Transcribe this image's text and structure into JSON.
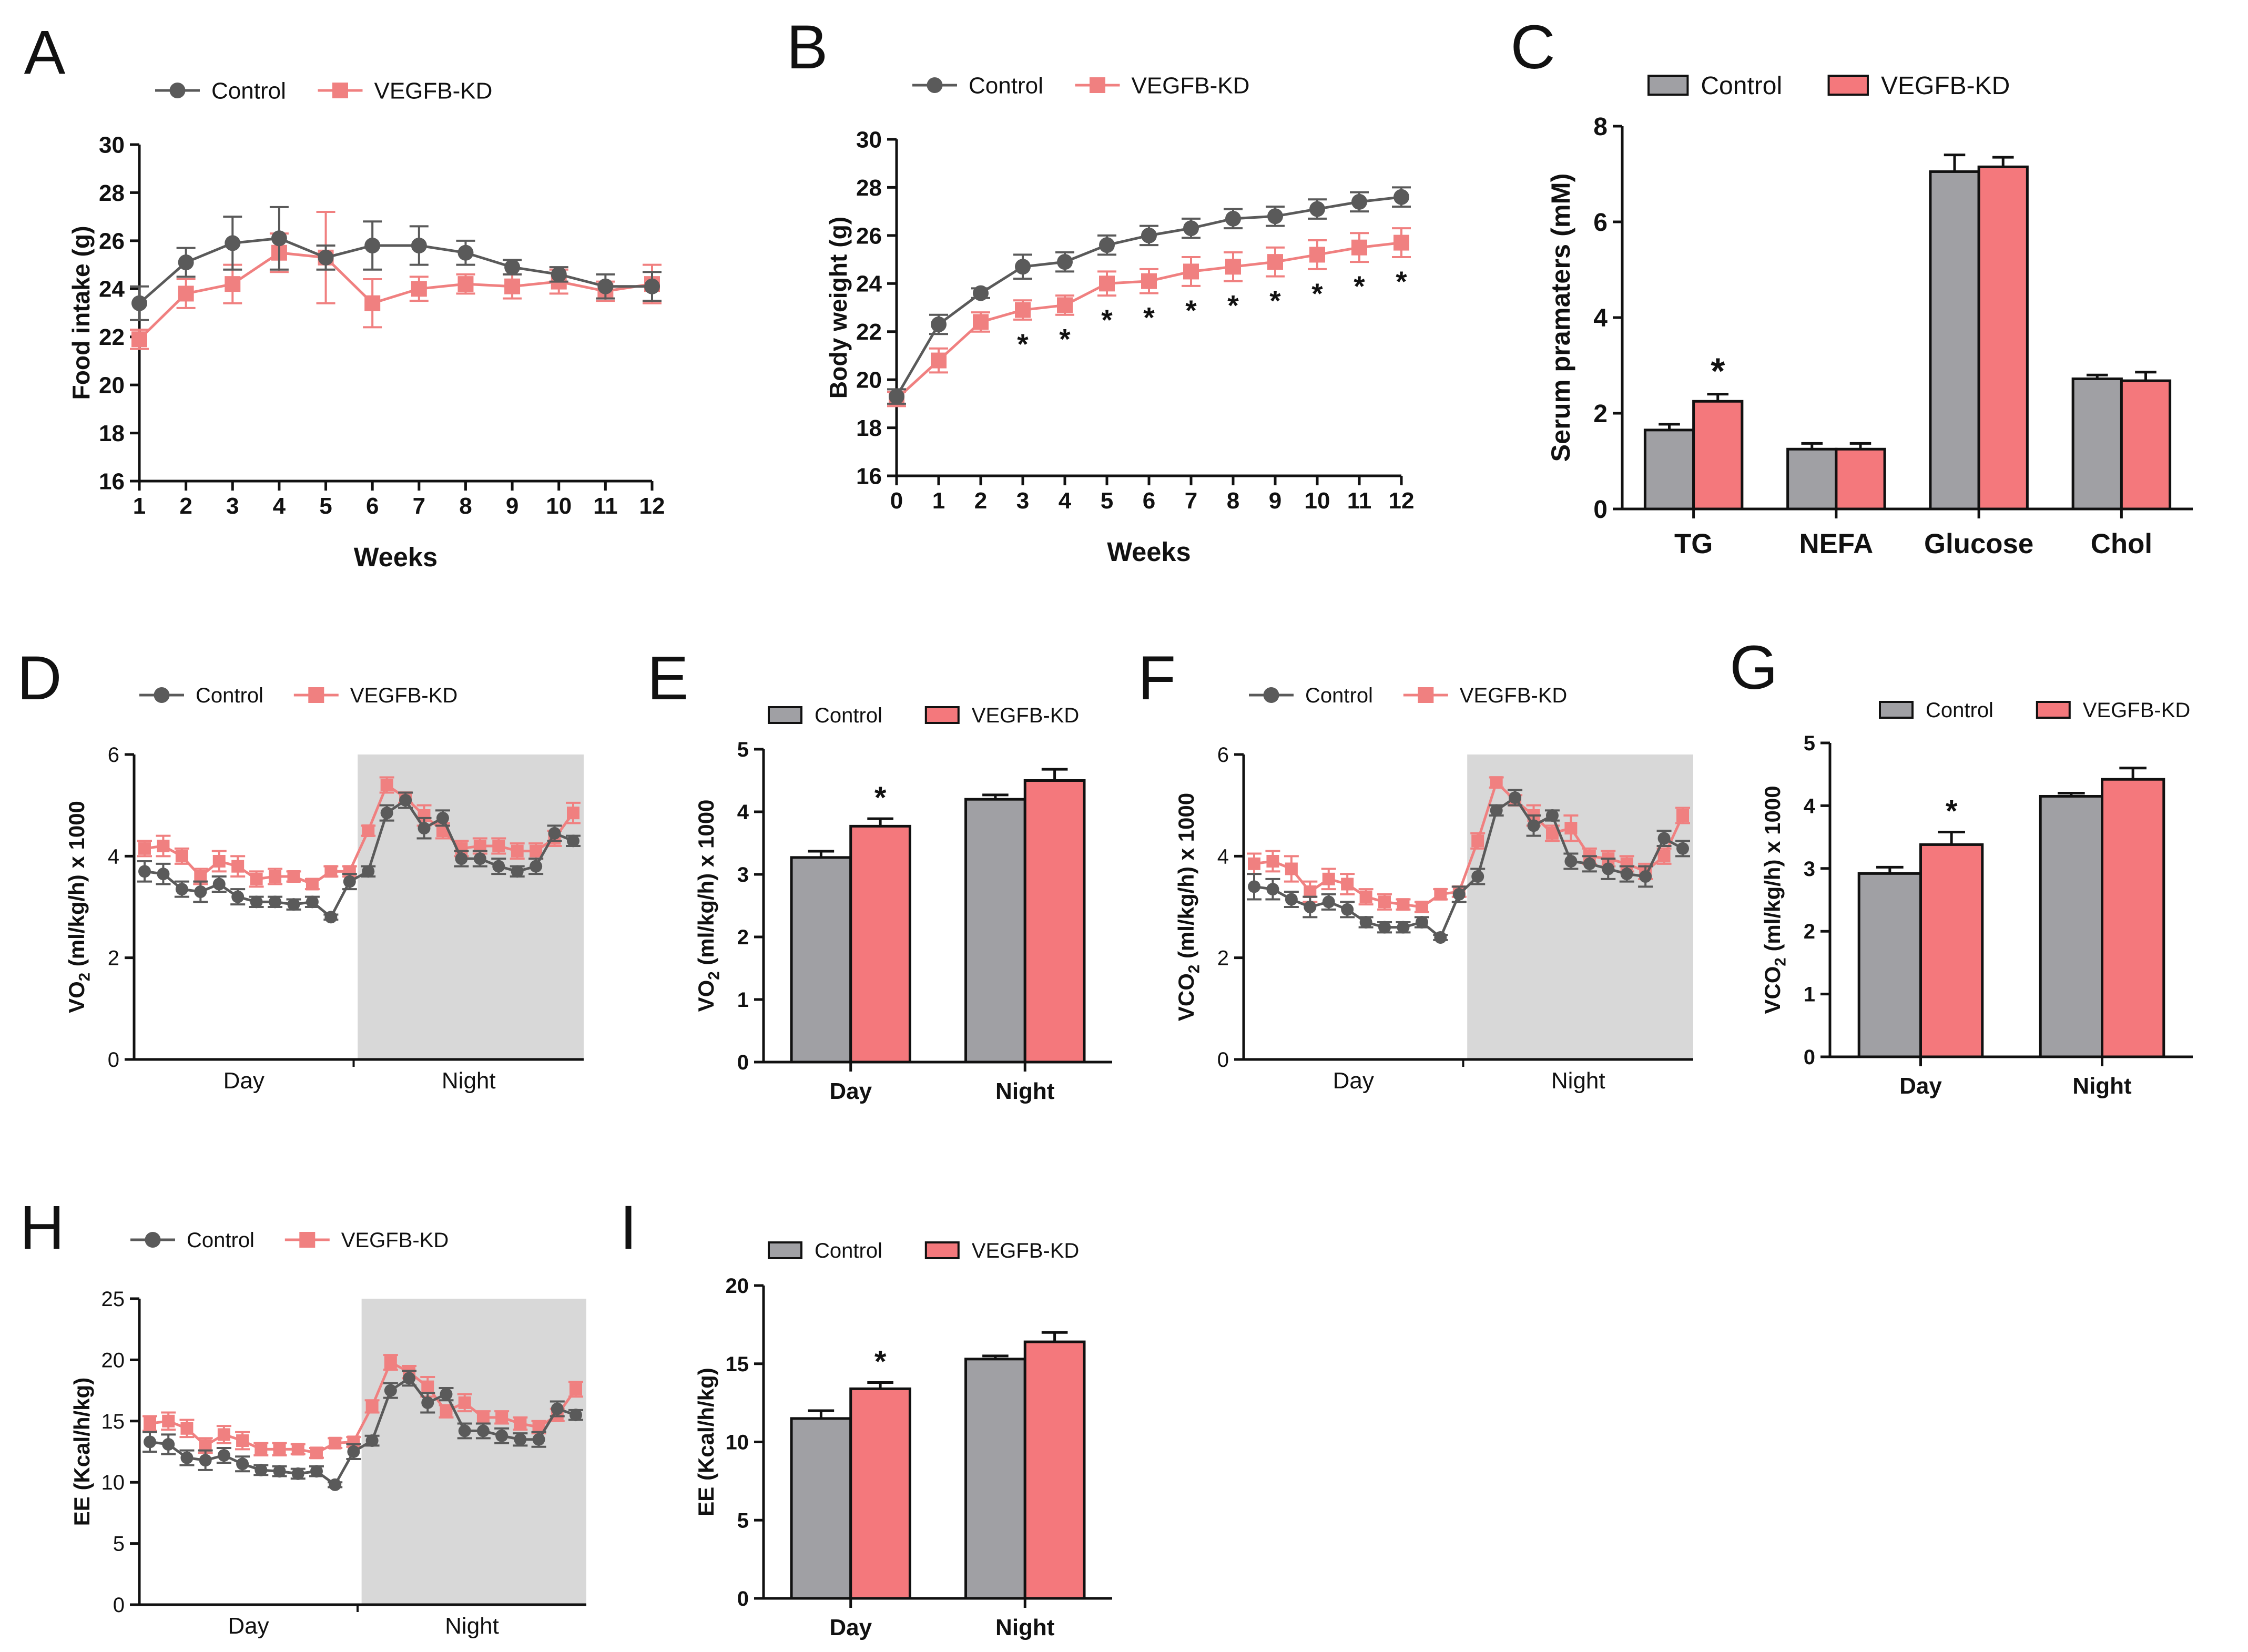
{
  "figure": {
    "legend_control": "Control",
    "legend_kd": "VEGFB-KD",
    "colors": {
      "control": "#5a5a5a",
      "kd": "#f08080",
      "bar_control": "#a0a0a4",
      "bar_kd": "#f4787c",
      "night_shade": "#d8d8d8"
    }
  },
  "chart_data": [
    {
      "panel": "A",
      "type": "line",
      "xlabel": "Weeks",
      "ylabel": "Food intake (g)",
      "x": [
        1,
        2,
        3,
        4,
        5,
        6,
        7,
        8,
        9,
        10,
        11,
        12
      ],
      "xticks": [
        "1",
        "2",
        "3",
        "4",
        "5",
        "6",
        "7",
        "8",
        "9",
        "10",
        "11",
        "12"
      ],
      "ylim": [
        16,
        30
      ],
      "yticks": [
        16,
        18,
        20,
        22,
        24,
        26,
        28,
        30
      ],
      "series": [
        {
          "name": "Control",
          "values": [
            23.4,
            25.1,
            25.9,
            26.1,
            25.3,
            25.8,
            25.8,
            25.5,
            24.9,
            24.6,
            24.1,
            24.1
          ],
          "err": [
            0.7,
            0.6,
            1.1,
            1.3,
            0.5,
            1.0,
            0.8,
            0.5,
            0.3,
            0.3,
            0.5,
            0.6
          ]
        },
        {
          "name": "VEGFB-KD",
          "values": [
            21.9,
            23.8,
            24.2,
            25.5,
            25.3,
            23.4,
            24.0,
            24.2,
            24.1,
            24.3,
            23.9,
            24.2
          ],
          "err": [
            0.4,
            0.6,
            0.8,
            0.8,
            1.9,
            1.0,
            0.5,
            0.4,
            0.5,
            0.5,
            0.4,
            0.8
          ]
        }
      ],
      "significance": []
    },
    {
      "panel": "B",
      "type": "line",
      "xlabel": "Weeks",
      "ylabel": "Body weight (g)",
      "x": [
        0,
        1,
        2,
        3,
        4,
        5,
        6,
        7,
        8,
        9,
        10,
        11,
        12
      ],
      "xticks": [
        "0",
        "1",
        "2",
        "3",
        "4",
        "5",
        "6",
        "7",
        "8",
        "9",
        "10",
        "11",
        "12"
      ],
      "ylim": [
        16,
        30
      ],
      "yticks": [
        16,
        18,
        20,
        22,
        24,
        26,
        28,
        30
      ],
      "series": [
        {
          "name": "Control",
          "values": [
            19.3,
            22.3,
            23.6,
            24.7,
            24.9,
            25.6,
            26.0,
            26.3,
            26.7,
            26.8,
            27.1,
            27.4,
            27.6
          ],
          "err": [
            0.3,
            0.4,
            0.2,
            0.5,
            0.4,
            0.4,
            0.4,
            0.4,
            0.4,
            0.4,
            0.4,
            0.4,
            0.4
          ]
        },
        {
          "name": "VEGFB-KD",
          "values": [
            19.2,
            20.8,
            22.4,
            22.9,
            23.1,
            24.0,
            24.1,
            24.5,
            24.7,
            24.9,
            25.2,
            25.5,
            25.7
          ],
          "err": [
            0.3,
            0.5,
            0.4,
            0.4,
            0.4,
            0.5,
            0.5,
            0.6,
            0.6,
            0.6,
            0.6,
            0.6,
            0.6
          ]
        }
      ],
      "significance": [
        {
          "x": 3,
          "label": "*"
        },
        {
          "x": 4,
          "label": "*"
        },
        {
          "x": 5,
          "label": "*"
        },
        {
          "x": 6,
          "label": "*"
        },
        {
          "x": 7,
          "label": "*"
        },
        {
          "x": 8,
          "label": "*"
        },
        {
          "x": 9,
          "label": "*"
        },
        {
          "x": 10,
          "label": "*"
        },
        {
          "x": 11,
          "label": "*"
        },
        {
          "x": 12,
          "label": "*"
        }
      ]
    },
    {
      "panel": "C",
      "type": "bar",
      "xlabel": "",
      "ylabel": "Serum pramaters (mM)",
      "categories": [
        "TG",
        "NEFA",
        "Glucose",
        "Chol"
      ],
      "ylim": [
        0,
        8
      ],
      "yticks": [
        0,
        2,
        4,
        6,
        8
      ],
      "series": [
        {
          "name": "Control",
          "values": [
            1.65,
            1.25,
            7.05,
            2.72
          ],
          "err": [
            0.12,
            0.12,
            0.35,
            0.08
          ]
        },
        {
          "name": "VEGFB-KD",
          "values": [
            2.25,
            1.25,
            7.15,
            2.68
          ],
          "err": [
            0.15,
            0.12,
            0.2,
            0.18
          ]
        }
      ],
      "significance": [
        {
          "category": "TG",
          "label": "*"
        }
      ]
    },
    {
      "panel": "D",
      "type": "line",
      "xlabel": "",
      "ylabel": "VO2 (ml/kg/h) x 1000",
      "phase_labels": [
        "Day",
        "Night"
      ],
      "ylim": [
        0,
        6
      ],
      "yticks": [
        0,
        2,
        4,
        6
      ],
      "series": [
        {
          "name": "Control",
          "values": [
            3.7,
            3.65,
            3.35,
            3.3,
            3.45,
            3.2,
            3.1,
            3.1,
            3.05,
            3.1,
            2.8,
            3.5,
            3.7,
            4.85,
            5.1,
            4.55,
            4.75,
            3.95,
            3.95,
            3.8,
            3.7,
            3.8,
            4.45,
            4.3
          ],
          "err": [
            0.2,
            0.2,
            0.15,
            0.2,
            0.15,
            0.15,
            0.1,
            0.1,
            0.1,
            0.1,
            0.05,
            0.15,
            0.1,
            0.15,
            0.15,
            0.2,
            0.15,
            0.15,
            0.15,
            0.15,
            0.1,
            0.15,
            0.15,
            0.1
          ]
        },
        {
          "name": "VEGFB-KD",
          "values": [
            4.15,
            4.2,
            4.0,
            3.6,
            3.9,
            3.8,
            3.55,
            3.6,
            3.6,
            3.45,
            3.7,
            3.7,
            4.5,
            5.4,
            5.15,
            4.8,
            4.5,
            4.15,
            4.2,
            4.2,
            4.1,
            4.1,
            4.35,
            4.85
          ],
          "err": [
            0.15,
            0.2,
            0.15,
            0.15,
            0.2,
            0.2,
            0.15,
            0.15,
            0.1,
            0.1,
            0.1,
            0.1,
            0.1,
            0.15,
            0.1,
            0.2,
            0.15,
            0.15,
            0.15,
            0.15,
            0.15,
            0.15,
            0.15,
            0.2
          ]
        }
      ]
    },
    {
      "panel": "E",
      "type": "bar",
      "xlabel": "",
      "ylabel": "VO2 (ml/kg/h) x 1000",
      "categories": [
        "Day",
        "Night"
      ],
      "ylim": [
        0,
        5
      ],
      "yticks": [
        0,
        1,
        2,
        3,
        4,
        5
      ],
      "series": [
        {
          "name": "Control",
          "values": [
            3.27,
            4.2
          ],
          "err": [
            0.1,
            0.07
          ]
        },
        {
          "name": "VEGFB-KD",
          "values": [
            3.77,
            4.5
          ],
          "err": [
            0.12,
            0.18
          ]
        }
      ],
      "significance": [
        {
          "category": "Day",
          "label": "*"
        }
      ]
    },
    {
      "panel": "F",
      "type": "line",
      "xlabel": "",
      "ylabel": "VCO2 (ml/kg/h) x 1000",
      "phase_labels": [
        "Day",
        "Night"
      ],
      "ylim": [
        0,
        6
      ],
      "yticks": [
        0,
        2,
        4,
        6
      ],
      "series": [
        {
          "name": "Control",
          "values": [
            3.4,
            3.35,
            3.15,
            3.0,
            3.1,
            2.95,
            2.7,
            2.6,
            2.6,
            2.7,
            2.4,
            3.25,
            3.6,
            4.9,
            5.15,
            4.6,
            4.8,
            3.9,
            3.85,
            3.75,
            3.65,
            3.6,
            4.35,
            4.15
          ],
          "err": [
            0.25,
            0.2,
            0.15,
            0.2,
            0.15,
            0.15,
            0.1,
            0.1,
            0.1,
            0.1,
            0.05,
            0.15,
            0.15,
            0.1,
            0.15,
            0.2,
            0.1,
            0.15,
            0.15,
            0.2,
            0.15,
            0.2,
            0.15,
            0.15
          ]
        },
        {
          "name": "VEGFB-KD",
          "values": [
            3.85,
            3.9,
            3.75,
            3.3,
            3.55,
            3.45,
            3.2,
            3.1,
            3.05,
            3.0,
            3.25,
            3.3,
            4.3,
            5.45,
            5.1,
            4.8,
            4.45,
            4.55,
            4.0,
            3.95,
            3.85,
            3.7,
            4.0,
            4.8
          ],
          "err": [
            0.2,
            0.2,
            0.25,
            0.2,
            0.2,
            0.2,
            0.15,
            0.15,
            0.1,
            0.1,
            0.1,
            0.1,
            0.15,
            0.1,
            0.1,
            0.2,
            0.15,
            0.25,
            0.15,
            0.15,
            0.15,
            0.15,
            0.15,
            0.15
          ]
        }
      ]
    },
    {
      "panel": "G",
      "type": "bar",
      "xlabel": "",
      "ylabel": "VCO2 (ml/kg/h) x 1000",
      "categories": [
        "Day",
        "Night"
      ],
      "ylim": [
        0,
        5
      ],
      "yticks": [
        0,
        1,
        2,
        3,
        4,
        5
      ],
      "series": [
        {
          "name": "Control",
          "values": [
            2.92,
            4.15
          ],
          "err": [
            0.1,
            0.05
          ]
        },
        {
          "name": "VEGFB-KD",
          "values": [
            3.38,
            4.42
          ],
          "err": [
            0.2,
            0.18
          ]
        }
      ],
      "significance": [
        {
          "category": "Day",
          "label": "*"
        }
      ]
    },
    {
      "panel": "H",
      "type": "line",
      "xlabel": "",
      "ylabel": "EE (Kcal/h/kg)",
      "phase_labels": [
        "Day",
        "Night"
      ],
      "ylim": [
        0,
        25
      ],
      "yticks": [
        0,
        5,
        10,
        15,
        20,
        25
      ],
      "series": [
        {
          "name": "Control",
          "values": [
            13.3,
            13.1,
            12.0,
            11.8,
            12.2,
            11.5,
            11.0,
            10.9,
            10.7,
            10.9,
            9.8,
            12.5,
            13.4,
            17.5,
            18.5,
            16.5,
            17.2,
            14.2,
            14.2,
            13.8,
            13.5,
            13.5,
            16.0,
            15.5
          ],
          "err": [
            0.8,
            0.8,
            0.6,
            0.8,
            0.6,
            0.6,
            0.4,
            0.4,
            0.4,
            0.4,
            0.2,
            0.6,
            0.4,
            0.6,
            0.6,
            0.8,
            0.5,
            0.6,
            0.6,
            0.6,
            0.5,
            0.6,
            0.6,
            0.4
          ]
        },
        {
          "name": "VEGFB-KD",
          "values": [
            14.8,
            15.0,
            14.4,
            13.0,
            13.9,
            13.4,
            12.7,
            12.7,
            12.7,
            12.4,
            13.2,
            13.3,
            16.2,
            19.8,
            19.0,
            17.8,
            15.8,
            16.5,
            15.3,
            15.3,
            14.8,
            14.5,
            15.5,
            17.6
          ],
          "err": [
            0.6,
            0.7,
            0.7,
            0.6,
            0.7,
            0.7,
            0.5,
            0.5,
            0.4,
            0.4,
            0.4,
            0.4,
            0.5,
            0.6,
            0.5,
            0.8,
            0.5,
            0.7,
            0.5,
            0.5,
            0.5,
            0.5,
            0.5,
            0.6
          ]
        }
      ]
    },
    {
      "panel": "I",
      "type": "bar",
      "xlabel": "",
      "ylabel": "EE (Kcal/h/kg)",
      "categories": [
        "Day",
        "Night"
      ],
      "ylim": [
        0,
        20
      ],
      "yticks": [
        0,
        5,
        10,
        15,
        20
      ],
      "series": [
        {
          "name": "Control",
          "values": [
            11.5,
            15.3
          ],
          "err": [
            0.5,
            0.2
          ]
        },
        {
          "name": "VEGFB-KD",
          "values": [
            13.4,
            16.4
          ],
          "err": [
            0.4,
            0.6
          ]
        }
      ],
      "significance": [
        {
          "category": "Day",
          "label": "*"
        }
      ]
    }
  ]
}
